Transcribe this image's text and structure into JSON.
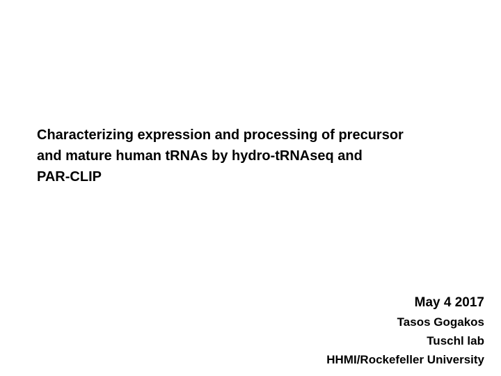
{
  "slide": {
    "title_lines": [
      "Characterizing expression and processing of precursor",
      "and mature human tRNAs by hydro-tRNAseq and",
      "PAR-CLIP"
    ],
    "date": "May 4 2017",
    "presenter": "Tasos Gogakos",
    "lab": "Tuschl lab",
    "institution": "HHMI/Rockefeller University"
  }
}
